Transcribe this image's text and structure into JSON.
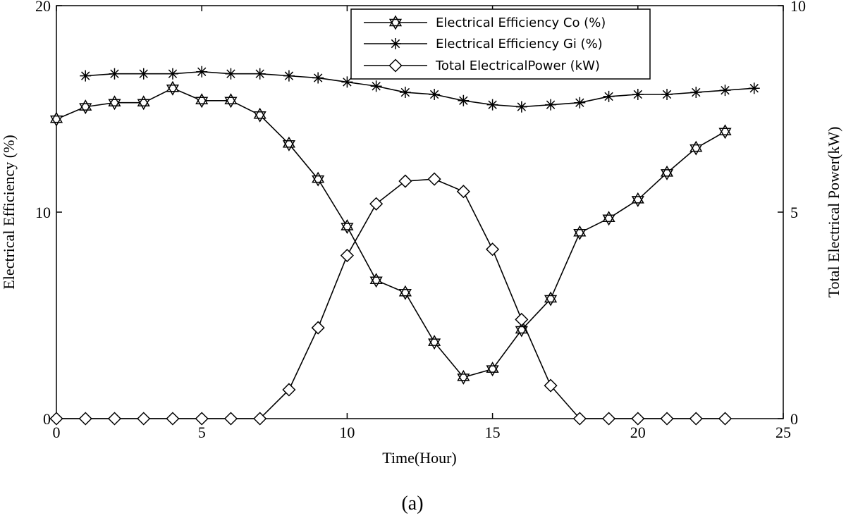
{
  "chart_data": {
    "type": "line",
    "xlabel": "Time(Hour)",
    "ylabel_left": "Electrical Efficiency (%)",
    "ylabel_right": "Total Electrical Power(kW)",
    "xlim": [
      0,
      25
    ],
    "ylim_left": [
      0,
      20
    ],
    "ylim_right": [
      0,
      10
    ],
    "xticks": [
      "0",
      "5",
      "10",
      "15",
      "20",
      "25"
    ],
    "yticks_left": [
      "0",
      "10",
      "20"
    ],
    "yticks_right": [
      "0",
      "5",
      "10"
    ],
    "grid": false,
    "legend_position": "top-center",
    "caption": "(a)",
    "series": [
      {
        "name": "Electrical Efficiency Co (%)",
        "axis": "left",
        "marker": "hexagram",
        "x": [
          0,
          1,
          2,
          3,
          4,
          5,
          6,
          7,
          8,
          9,
          10,
          11,
          12,
          13,
          14,
          15,
          16,
          17,
          18,
          19,
          20,
          21,
          22,
          23
        ],
        "values": [
          14.5,
          15.1,
          15.3,
          15.3,
          16.0,
          15.4,
          15.4,
          14.7,
          13.3,
          11.6,
          9.3,
          6.7,
          6.1,
          3.7,
          2.0,
          2.4,
          4.3,
          5.8,
          9.0,
          9.7,
          10.6,
          11.9,
          13.1,
          13.9
        ]
      },
      {
        "name": "Electrical Efficiency Gi (%)",
        "axis": "left",
        "marker": "asterisk",
        "x": [
          1,
          2,
          3,
          4,
          5,
          6,
          7,
          8,
          9,
          10,
          11,
          12,
          13,
          14,
          15,
          16,
          17,
          18,
          19,
          20,
          21,
          22,
          23,
          24
        ],
        "values": [
          16.6,
          16.7,
          16.7,
          16.7,
          16.8,
          16.7,
          16.7,
          16.6,
          16.5,
          16.3,
          16.1,
          15.8,
          15.7,
          15.4,
          15.2,
          15.1,
          15.2,
          15.3,
          15.6,
          15.7,
          15.7,
          15.8,
          15.9,
          16.0
        ]
      },
      {
        "name": "Total ElectricalPower (kW)",
        "axis": "right",
        "marker": "diamond",
        "x": [
          0,
          1,
          2,
          3,
          4,
          5,
          6,
          7,
          8,
          9,
          10,
          11,
          12,
          13,
          14,
          15,
          16,
          17,
          18,
          19,
          20,
          21,
          22,
          23
        ],
        "values": [
          0,
          0,
          0,
          0,
          0,
          0,
          0,
          0,
          0.7,
          2.2,
          3.95,
          5.2,
          5.75,
          5.8,
          5.5,
          4.1,
          2.4,
          0.8,
          0,
          0,
          0,
          0,
          0,
          0
        ]
      }
    ]
  }
}
